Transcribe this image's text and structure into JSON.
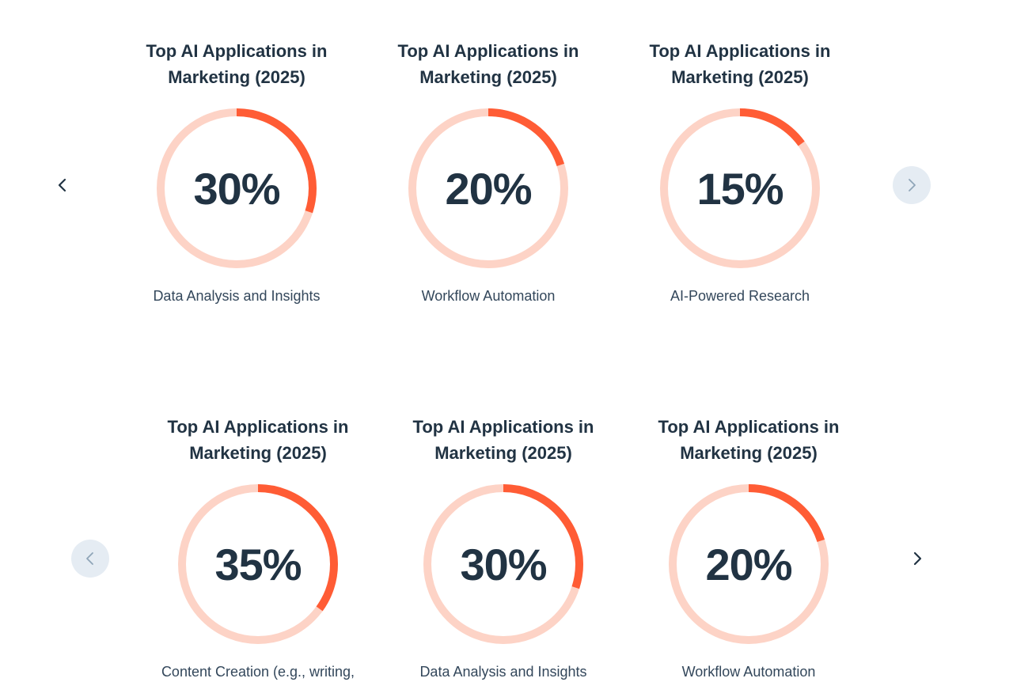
{
  "carousel_top": {
    "cards": [
      {
        "title_line1": "Top AI Applications in",
        "title_line2": "Marketing (2025)",
        "value": "30%",
        "percent": 30,
        "label": "Data Analysis and Insights"
      },
      {
        "title_line1": "Top AI Applications in",
        "title_line2": "Marketing (2025)",
        "value": "20%",
        "percent": 20,
        "label": "Workflow Automation"
      },
      {
        "title_line1": "Top AI Applications in",
        "title_line2": "Marketing (2025)",
        "value": "15%",
        "percent": 15,
        "label": "AI-Powered Research"
      }
    ],
    "prev_icon": "chevron-left-icon",
    "next_icon": "chevron-right-icon"
  },
  "carousel_bottom": {
    "cards": [
      {
        "title_line1": "Top AI Applications in",
        "title_line2": "Marketing (2025)",
        "value": "35%",
        "percent": 35,
        "label": "Content Creation (e.g., writing,"
      },
      {
        "title_line1": "Top AI Applications in",
        "title_line2": "Marketing (2025)",
        "value": "30%",
        "percent": 30,
        "label": "Data Analysis and Insights"
      },
      {
        "title_line1": "Top AI Applications in",
        "title_line2": "Marketing (2025)",
        "value": "20%",
        "percent": 20,
        "label": "Workflow Automation"
      }
    ],
    "prev_icon": "chevron-left-icon",
    "next_icon": "chevron-right-icon"
  },
  "colors": {
    "ring_track": "#fdd3c6",
    "ring_fill": "#ff5c35",
    "text_dark": "#213343",
    "disabled_bg": "#e5ecf3"
  }
}
